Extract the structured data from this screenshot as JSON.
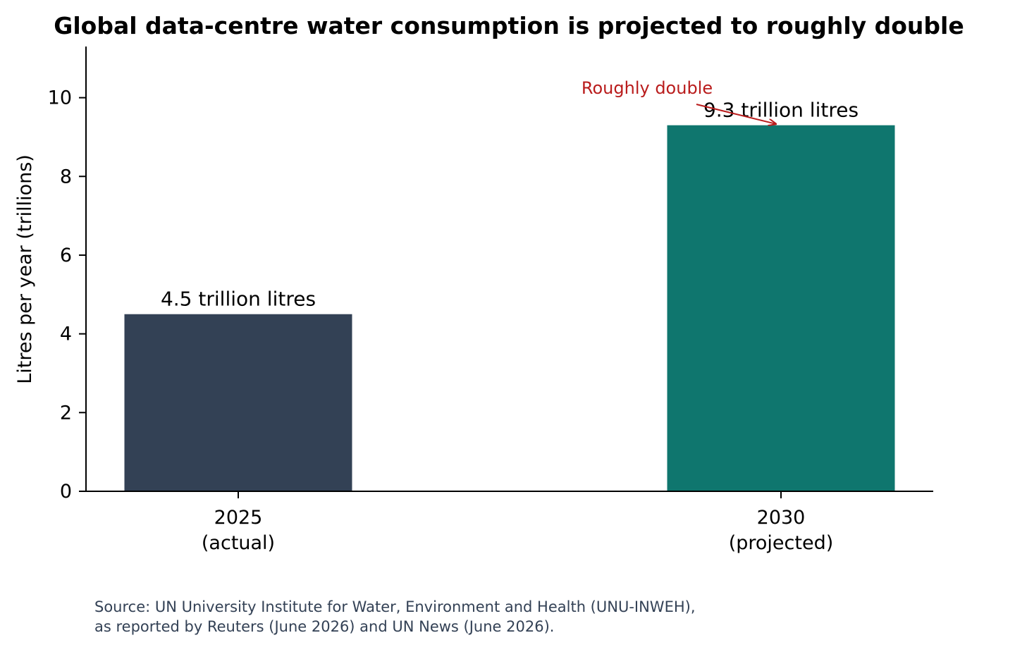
{
  "chart_data": {
    "type": "bar",
    "title": "Global data-centre water consumption is projected to roughly double",
    "ylabel": "Litres per year (trillions)",
    "xlabel": "",
    "ylim": [
      0,
      11.3
    ],
    "yticks": [
      0,
      2,
      4,
      6,
      8,
      10
    ],
    "categories": [
      {
        "year": "2025",
        "note": "(actual)"
      },
      {
        "year": "2030",
        "note": "(projected)"
      }
    ],
    "values": [
      4.5,
      9.3
    ],
    "data_labels": [
      "4.5 trillion litres",
      "9.3 trillion litres"
    ],
    "bar_colors": [
      "#334155",
      "#0f766e"
    ],
    "grid": false,
    "annotation": {
      "text": "Roughly double",
      "color": "#b91c1c",
      "points_to_category": 1,
      "points_to_value": 9.3
    }
  },
  "source": {
    "lines": [
      "Source: UN University Institute for Water, Environment and Health (UNU-INWEH),",
      "as reported by Reuters (June 2026) and UN News (June 2026)."
    ],
    "color": "#334155"
  }
}
